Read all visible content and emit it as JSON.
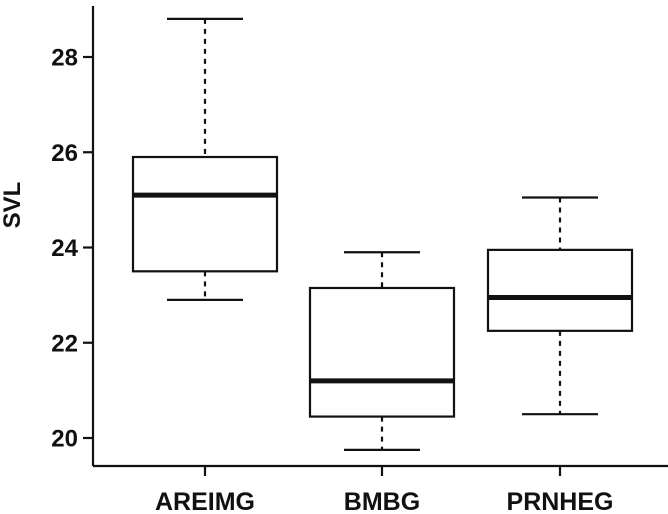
{
  "chart_data": {
    "type": "box",
    "title": "",
    "xlabel": "",
    "ylabel": "SVL",
    "ylim": [
      19.5,
      29.2
    ],
    "yticks": [
      20,
      22,
      24,
      26,
      28
    ],
    "grid": false,
    "categories": [
      "AREIMG",
      "BMBG",
      "PRNHEG"
    ],
    "boxes": [
      {
        "category": "AREIMG",
        "whisker_low": 22.9,
        "q1": 23.5,
        "median": 25.1,
        "q3": 25.9,
        "whisker_high": 28.8
      },
      {
        "category": "BMBG",
        "whisker_low": 19.75,
        "q1": 20.45,
        "median": 21.2,
        "q3": 23.15,
        "whisker_high": 23.9
      },
      {
        "category": "PRNHEG",
        "whisker_low": 20.5,
        "q1": 22.25,
        "median": 22.95,
        "q3": 23.95,
        "whisker_high": 25.05
      }
    ],
    "colors": {
      "box_fill": "#ffffff",
      "stroke": "#111111"
    }
  }
}
